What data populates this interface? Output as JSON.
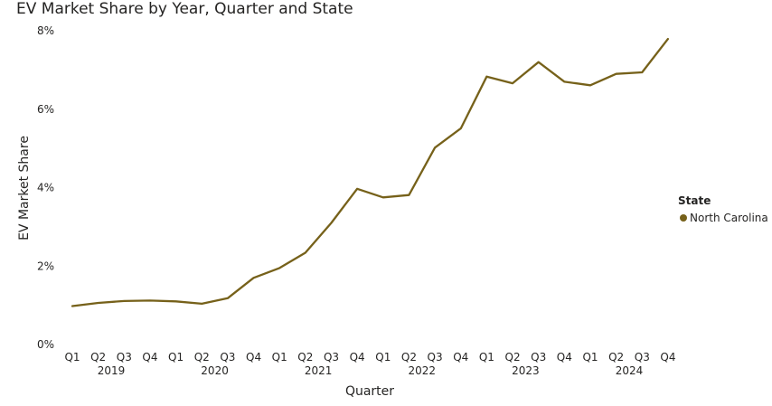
{
  "chart_data": {
    "type": "line",
    "title": "EV Market Share by Year, Quarter and State",
    "xlabel": "Quarter",
    "ylabel": "EV Market Share",
    "ylim": [
      0,
      8
    ],
    "y_ticks": [
      "0%",
      "2%",
      "4%",
      "6%",
      "8%"
    ],
    "y_tick_values": [
      0,
      2,
      4,
      6,
      8
    ],
    "grid": false,
    "legend_placement": "right",
    "legend_title": "State",
    "quarters": [
      "Q1",
      "Q2",
      "Q3",
      "Q4",
      "Q1",
      "Q2",
      "Q3",
      "Q4",
      "Q1",
      "Q2",
      "Q3",
      "Q4",
      "Q1",
      "Q2",
      "Q3",
      "Q4",
      "Q1",
      "Q2",
      "Q3",
      "Q4",
      "Q1",
      "Q2",
      "Q3",
      "Q4"
    ],
    "years": [
      "2019",
      "2020",
      "2021",
      "2022",
      "2023",
      "2024"
    ],
    "series": [
      {
        "name": "North Carolina",
        "color": "#76611a",
        "values": [
          0.98,
          1.06,
          1.11,
          1.12,
          1.1,
          1.04,
          1.18,
          1.7,
          1.95,
          2.34,
          3.1,
          3.97,
          3.75,
          3.81,
          5.02,
          5.51,
          6.83,
          6.66,
          7.2,
          6.7,
          6.61,
          6.9,
          6.94,
          7.79
        ]
      }
    ]
  }
}
